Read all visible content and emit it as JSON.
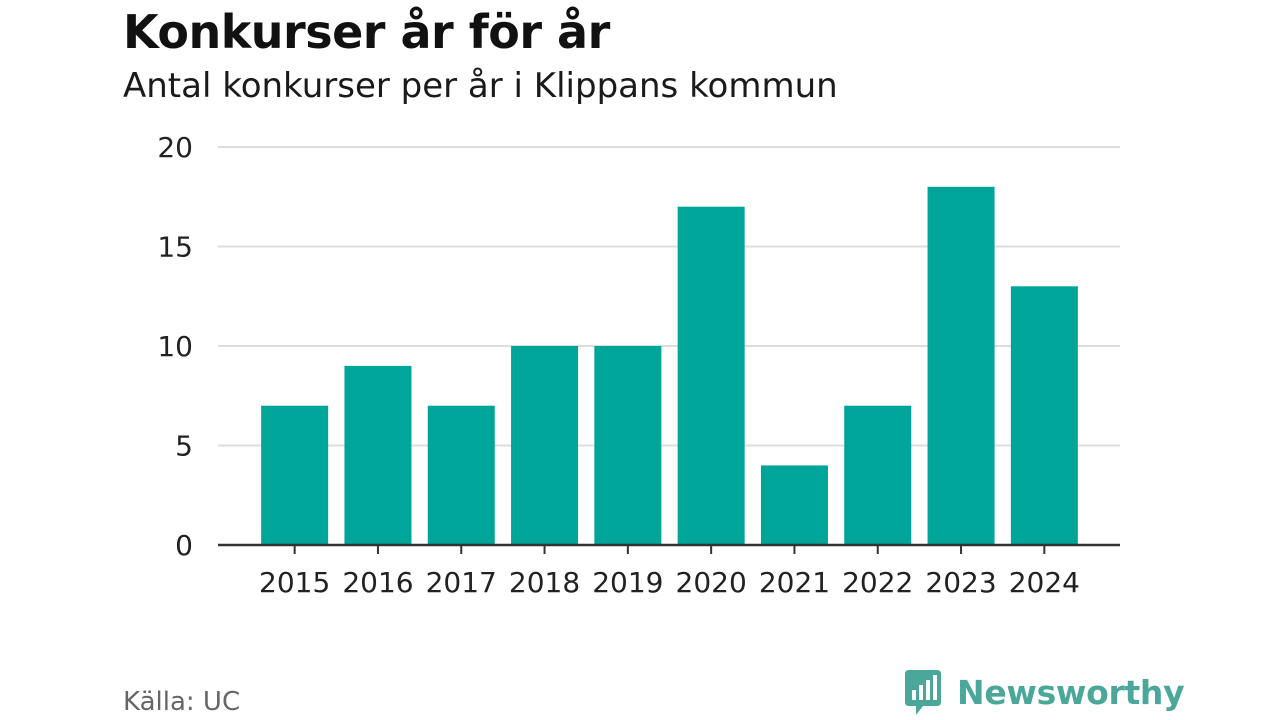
{
  "chart_data": {
    "type": "bar",
    "title": "Konkurser år för år",
    "subtitle": "Antal konkurser per år i Klippans kommun",
    "categories": [
      "2015",
      "2016",
      "2017",
      "2018",
      "2019",
      "2020",
      "2021",
      "2022",
      "2023",
      "2024"
    ],
    "values": [
      7,
      9,
      7,
      10,
      10,
      17,
      4,
      7,
      18,
      13
    ],
    "xlabel": "",
    "ylabel": "",
    "ylim": [
      0,
      20
    ],
    "yticks": [
      0,
      5,
      10,
      15,
      20
    ],
    "grid": true,
    "legend": "none",
    "bar_color": "#00a59a"
  },
  "footer": {
    "source": "Källa: UC",
    "brand": "Newsworthy",
    "brand_icon": "newsworthy-logo-icon",
    "brand_color": "#4aa79a"
  }
}
